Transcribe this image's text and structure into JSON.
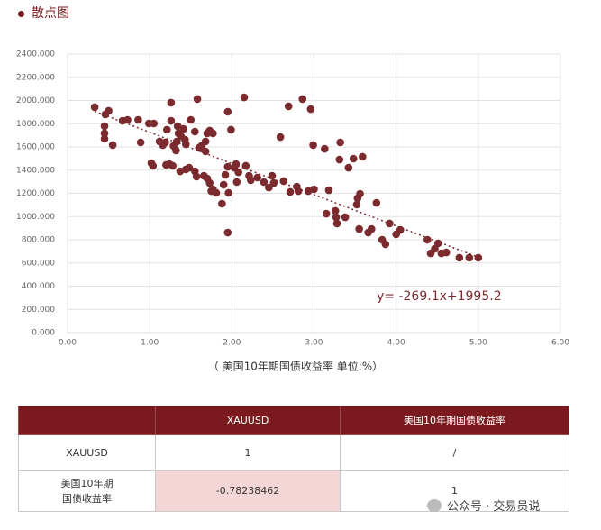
{
  "header": {
    "title": "散点图"
  },
  "chart_data": {
    "type": "scatter",
    "x_label": "（ 美国10年期国债收益率 单位:%）",
    "color": "#7b2a2e",
    "x": [
      0.33,
      0.5,
      0.46,
      0.45,
      0.45,
      0.45,
      0.55,
      0.67,
      0.73,
      0.86,
      0.89,
      0.99,
      1.05,
      1.02,
      1.04,
      1.12,
      1.16,
      1.19,
      1.21,
      1.26,
      1.26,
      1.24,
      1.2,
      1.28,
      1.29,
      1.32,
      1.34,
      1.35,
      1.33,
      1.38,
      1.41,
      1.43,
      1.44,
      1.37,
      1.44,
      1.48,
      1.5,
      1.55,
      1.58,
      1.55,
      1.57,
      1.6,
      1.63,
      1.68,
      1.7,
      1.73,
      1.77,
      1.68,
      1.66,
      1.7,
      1.73,
      1.77,
      1.75,
      1.81,
      1.88,
      1.9,
      1.92,
      1.95,
      1.95,
      1.99,
      1.96,
      1.95,
      2.03,
      2.05,
      2.06,
      2.08,
      2.15,
      2.17,
      2.21,
      2.23,
      2.31,
      2.39,
      2.45,
      2.49,
      2.51,
      2.59,
      2.63,
      2.69,
      2.71,
      2.79,
      2.81,
      2.86,
      2.93,
      2.96,
      2.99,
      3.0,
      3.13,
      3.15,
      3.18,
      3.26,
      3.27,
      3.28,
      3.32,
      3.31,
      3.38,
      3.42,
      3.48,
      3.52,
      3.53,
      3.56,
      3.55,
      3.59,
      3.66,
      3.7,
      3.76,
      3.83,
      3.87,
      3.92,
      4.0,
      4.05,
      4.38,
      4.42,
      4.47,
      4.51,
      4.55,
      4.61,
      4.77,
      4.89,
      5.0
    ],
    "values": [
      1942,
      1911,
      1880,
      1779,
      1717,
      1670,
      1616,
      1825,
      1833,
      1833,
      1639,
      1802,
      1802,
      1460,
      1437,
      1647,
      1616,
      1639,
      1748,
      1981,
      1825,
      1452,
      1445,
      1437,
      1608,
      1569,
      1779,
      1717,
      1647,
      1693,
      1755,
      1662,
      1623,
      1390,
      1406,
      1421,
      1833,
      1732,
      2012,
      1390,
      1344,
      1592,
      1608,
      1647,
      1717,
      1740,
      1717,
      1561,
      1351,
      1328,
      1289,
      1235,
      1219,
      1204,
      1111,
      1274,
      1359,
      1429,
      1903,
      1748,
      1204,
      862,
      1421,
      1452,
      1297,
      1382,
      2027,
      1437,
      1351,
      1313,
      1336,
      1297,
      1250,
      1351,
      1289,
      1685,
      1305,
      1950,
      1212,
      1258,
      1219,
      2012,
      1219,
      1926,
      1616,
      1235,
      1584,
      1025,
      1227,
      1049,
      994,
      940,
      1639,
      1491,
      994,
      1421,
      1499,
      1103,
      1157,
      1196,
      893,
      1515,
      862,
      893,
      1118,
      800,
      761,
      940,
      847,
      885,
      800,
      683,
      722,
      769,
      683,
      691,
      645,
      645,
      645
    ],
    "xlim": [
      0,
      6
    ],
    "ylim": [
      0,
      2400
    ],
    "xticks": [
      {
        "value": 0,
        "label": "0.00"
      },
      {
        "value": 1,
        "label": "1.00"
      },
      {
        "value": 2,
        "label": "2.00"
      },
      {
        "value": 3,
        "label": "3.00"
      },
      {
        "value": 4,
        "label": "4.00"
      },
      {
        "value": 5,
        "label": "5.00"
      },
      {
        "value": 6,
        "label": "6.00"
      }
    ],
    "yticks": [
      {
        "value": 0,
        "label": "0.000"
      },
      {
        "value": 200,
        "label": "200.000"
      },
      {
        "value": 400,
        "label": "400.000"
      },
      {
        "value": 600,
        "label": "600.000"
      },
      {
        "value": 800,
        "label": "800.000"
      },
      {
        "value": 1000,
        "label": "1000.000"
      },
      {
        "value": 1200,
        "label": "1200.000"
      },
      {
        "value": 1400,
        "label": "1400.000"
      },
      {
        "value": 1600,
        "label": "1600.000"
      },
      {
        "value": 1800,
        "label": "1800.000"
      },
      {
        "value": 2000,
        "label": "2000.000"
      },
      {
        "value": 2200,
        "label": "2200.000"
      },
      {
        "value": 2400,
        "label": "2400.000"
      }
    ],
    "grid": true,
    "trendline": {
      "label": "y= -269.1x+1995.2",
      "slope": -269.1,
      "intercept": 1995.2
    }
  },
  "table": {
    "columns": [
      "XAUUSD",
      "美国10年期国债收益率"
    ],
    "rows": [
      [
        "XAUUSD",
        "1",
        "/"
      ],
      [
        "美国10年期\n国债收益率",
        "-0.78238462",
        "1"
      ]
    ]
  },
  "watermark": "公众号 · 交易员说"
}
